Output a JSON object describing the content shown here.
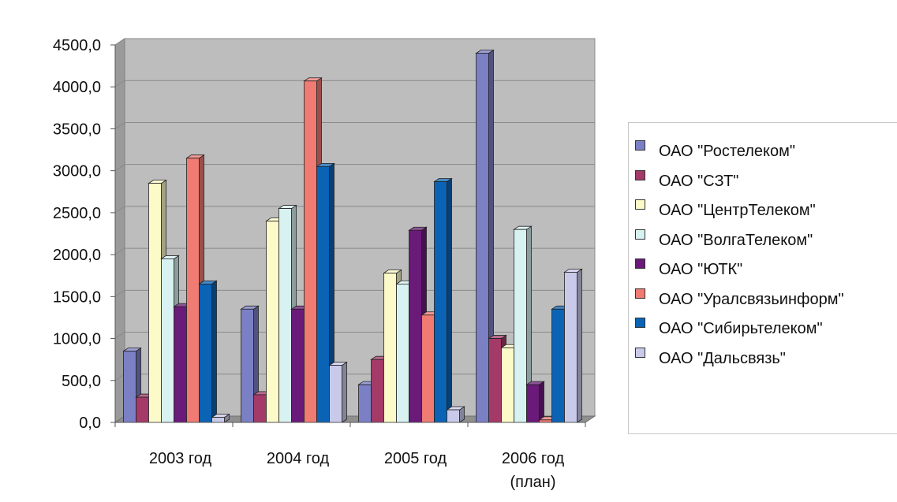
{
  "chart_data": {
    "type": "bar",
    "categories": [
      "2003 год",
      "2004 год",
      "2005 год",
      "2006 год\n(план)"
    ],
    "ylim": [
      0,
      4500
    ],
    "yticks": [
      "0,0",
      "500,0",
      "1000,0",
      "1500,0",
      "2000,0",
      "2500,0",
      "3000,0",
      "3500,0",
      "4000,0",
      "4500,0"
    ],
    "grid": true,
    "legend_position": "right",
    "series": [
      {
        "name": "ОАО \"Ростелеком\"",
        "color": "#7b7fc4",
        "values": [
          850,
          1350,
          450,
          4400
        ]
      },
      {
        "name": "ОАО \"СЗТ\"",
        "color": "#a33a68",
        "values": [
          300,
          330,
          750,
          1000
        ]
      },
      {
        "name": "ОАО \"ЦентрТелеком\"",
        "color": "#fcfac8",
        "values": [
          2850,
          2400,
          1780,
          890
        ]
      },
      {
        "name": "ОАО \"ВолгаТелеком\"",
        "color": "#d8f1f1",
        "values": [
          1950,
          2550,
          1650,
          2300
        ]
      },
      {
        "name": "ОАО \"ЮТК\"",
        "color": "#6a1a78",
        "values": [
          1380,
          1350,
          2290,
          450
        ]
      },
      {
        "name": "ОАО \"Уралсвязьинформ\"",
        "color": "#ef7b73",
        "values": [
          3150,
          4070,
          1280,
          30
        ]
      },
      {
        "name": "ОАО \"Сибирьтелеком\"",
        "color": "#0a63b4",
        "values": [
          1650,
          3050,
          2870,
          1350
        ]
      },
      {
        "name": "ОАО \"Дальсвязь\"",
        "color": "#c9caea",
        "values": [
          60,
          680,
          150,
          1790
        ]
      }
    ]
  }
}
